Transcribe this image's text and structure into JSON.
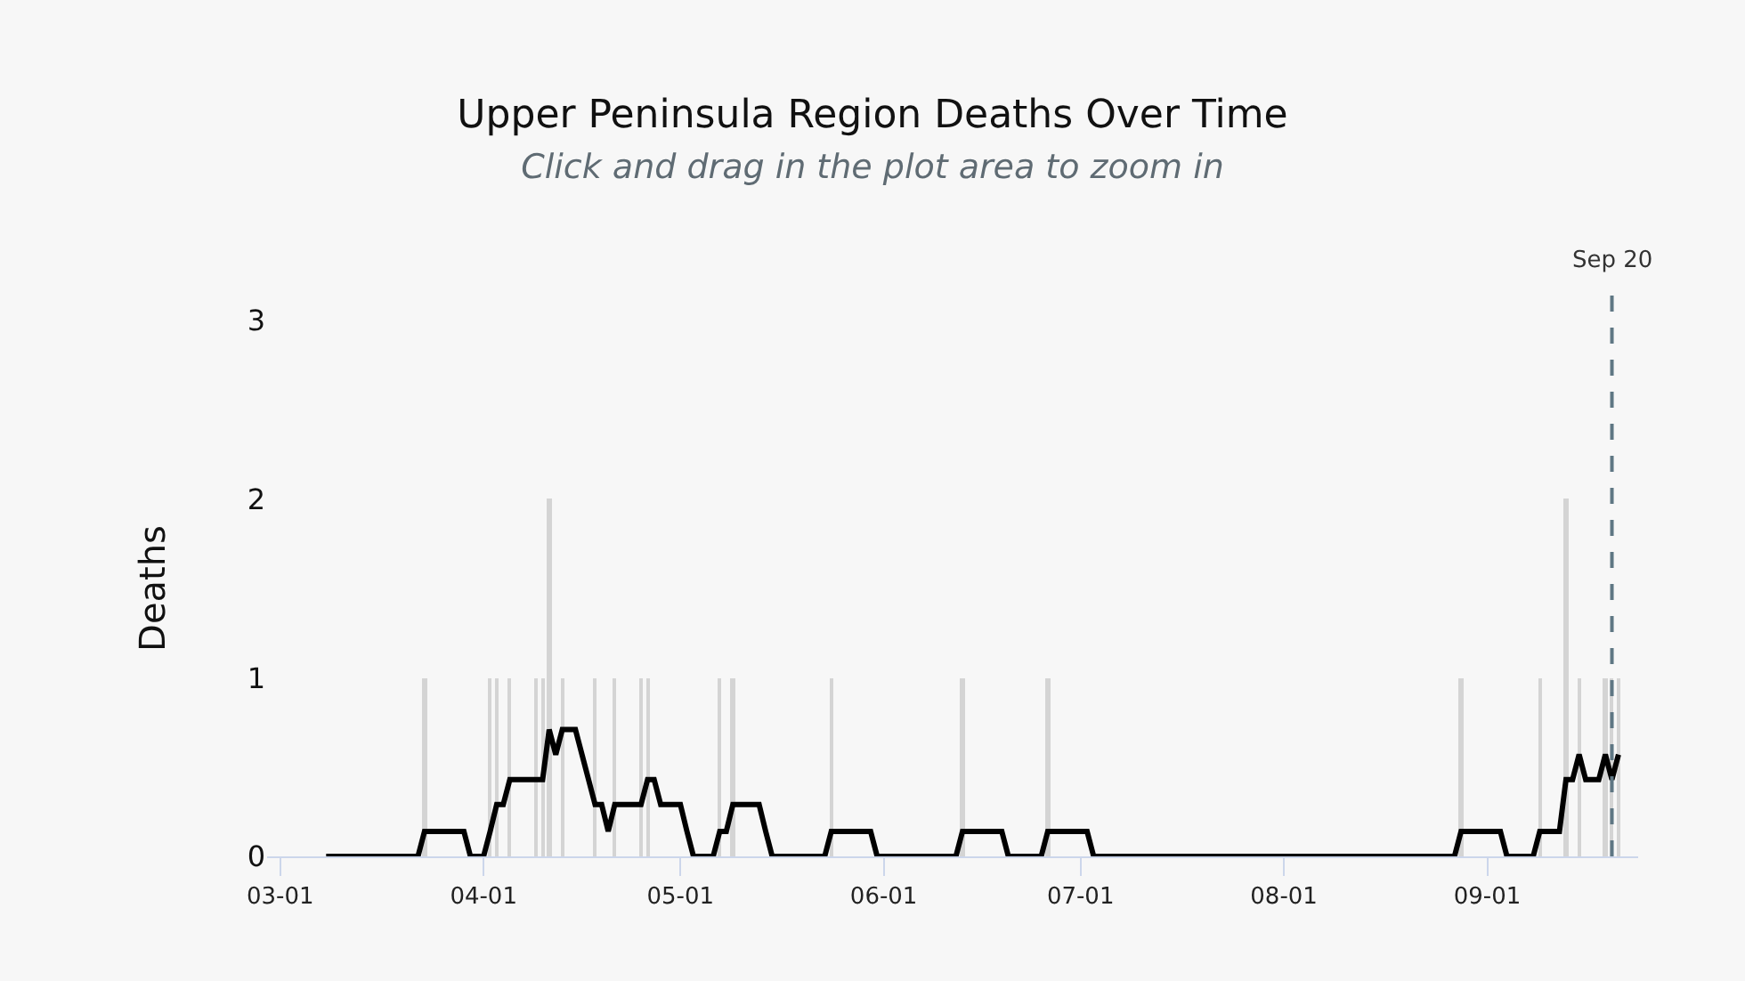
{
  "chart_data": {
    "type": "bar",
    "title": "Upper Peninsula Region Deaths Over Time",
    "subtitle": "Click and drag in the plot area to zoom in",
    "ylabel": "Deaths",
    "series": [
      {
        "color": "#d4d4d4",
        "x": [
          "--03-23",
          "--04-02",
          "--04-03",
          "--04-05",
          "--04-09",
          "--04-10",
          "--04-11",
          "--04-13",
          "--04-18",
          "--04-21",
          "--04-25",
          "--04-26",
          "--05-07",
          "--05-09",
          "--05-24",
          "--06-13",
          "--06-26",
          "--08-28",
          "--09-09",
          "--09-13",
          "--09-15",
          "--09-19",
          "--09-20",
          "--09-21"
        ],
        "values": [
          1,
          1,
          1,
          1,
          1,
          1,
          2,
          1,
          1,
          1,
          1,
          1,
          1,
          1,
          1,
          1,
          1,
          1,
          1,
          2,
          1,
          1,
          1,
          1
        ]
      },
      {
        "type": "line",
        "color": "#000000",
        "x": [
          "--03-08",
          "--03-22",
          "--03-23",
          "--03-29",
          "--03-30",
          "--04-01",
          "--04-02",
          "--04-03",
          "--04-04",
          "--04-05",
          "--04-10",
          "--04-11",
          "--04-12",
          "--04-13",
          "--04-15",
          "--04-16",
          "--04-17",
          "--04-18",
          "--04-19",
          "--04-20",
          "--04-21",
          "--04-25",
          "--04-26",
          "--04-27",
          "--04-28",
          "--05-01",
          "--05-02",
          "--05-03",
          "--05-06",
          "--05-07",
          "--05-08",
          "--05-09",
          "--05-13",
          "--05-14",
          "--05-15",
          "--05-23",
          "--05-24",
          "--05-30",
          "--05-31",
          "--06-12",
          "--06-13",
          "--06-19",
          "--06-20",
          "--06-25",
          "--06-26",
          "--07-02",
          "--07-03",
          "--08-27",
          "--08-28",
          "--09-03",
          "--09-04",
          "--09-08",
          "--09-09",
          "--09-12",
          "--09-13",
          "--09-14",
          "--09-15",
          "--09-16",
          "--09-18",
          "--09-19",
          "--09-20",
          "--09-21"
        ],
        "values": [
          0,
          0,
          0.14,
          0.14,
          0,
          0,
          0.14,
          0.29,
          0.29,
          0.43,
          0.43,
          0.71,
          0.57,
          0.71,
          0.71,
          0.57,
          0.43,
          0.29,
          0.29,
          0.14,
          0.29,
          0.29,
          0.43,
          0.43,
          0.29,
          0.29,
          0.14,
          0,
          0,
          0.14,
          0.14,
          0.29,
          0.29,
          0.14,
          0,
          0,
          0.14,
          0.14,
          0,
          0,
          0.14,
          0.14,
          0,
          0,
          0.14,
          0.14,
          0,
          0,
          0.14,
          0.14,
          0,
          0,
          0.14,
          0.14,
          0.43,
          0.43,
          0.57,
          0.43,
          0.43,
          0.57,
          0.43,
          0.57
        ]
      }
    ],
    "xlim": [
      "--02-28",
      "--09-24"
    ],
    "xticks": [
      {
        "value": "--03-01",
        "label": "03-01"
      },
      {
        "value": "--04-01",
        "label": "04-01"
      },
      {
        "value": "--05-01",
        "label": "05-01"
      },
      {
        "value": "--06-01",
        "label": "06-01"
      },
      {
        "value": "--07-01",
        "label": "07-01"
      },
      {
        "value": "--08-01",
        "label": "08-01"
      },
      {
        "value": "--09-01",
        "label": "09-01"
      }
    ],
    "ylim": [
      0,
      3
    ],
    "yticks": [
      0,
      1,
      2,
      3
    ],
    "grid": false,
    "ref_lines": [
      {
        "axis": "x",
        "value": "--09-20",
        "label": "Sep 20",
        "color": "#5f7784",
        "line_style": "dashed"
      }
    ]
  }
}
